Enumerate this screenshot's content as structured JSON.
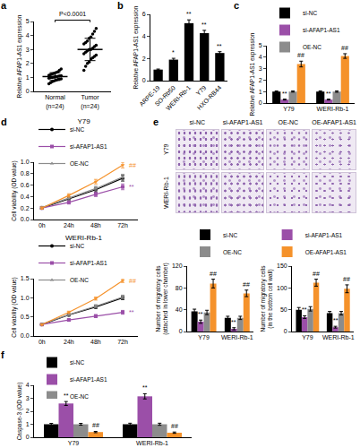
{
  "chart_data": [
    {
      "panel": "a",
      "type": "scatter",
      "y_label": "Relative AFAP1-AS1 expression",
      "categories": [
        "Normal\n(n=24)",
        "Tumor\n(n=24)"
      ],
      "groups": [
        {
          "color": "#000000",
          "values": [
            0.55,
            0.62,
            0.7,
            0.75,
            0.8,
            0.85,
            0.88,
            0.9,
            0.95,
            0.98,
            1.0,
            1.02,
            1.05,
            1.08,
            1.1,
            1.12,
            1.15,
            1.2,
            1.25,
            1.3,
            1.35,
            1.4,
            1.5,
            1.6
          ],
          "mean": 1.06,
          "sd": 0.28
        },
        {
          "color": "#000000",
          "values": [
            1.5,
            1.8,
            2.0,
            2.1,
            2.3,
            2.4,
            2.5,
            2.6,
            2.7,
            2.8,
            2.9,
            3.0,
            3.0,
            3.1,
            3.2,
            3.3,
            3.4,
            3.5,
            3.6,
            3.8,
            3.9,
            4.1,
            4.3,
            4.5
          ],
          "mean": 3.0,
          "sd": 0.8
        }
      ],
      "annotations": [
        {
          "text": "P<0.0001"
        }
      ],
      "ylim": [
        0,
        5
      ],
      "yticks": [
        0,
        1,
        2,
        3,
        4,
        5
      ]
    },
    {
      "panel": "b",
      "type": "bar",
      "y_label": "Relative AFAP1-AS1 expression",
      "categories": [
        "ARPE-19",
        "SO-Rb50",
        "WERI-Rb-1",
        "Y79",
        "HXO-RB44"
      ],
      "values": [
        1.0,
        1.9,
        5.2,
        4.3,
        2.5
      ],
      "errors": [
        0.05,
        0.12,
        0.3,
        0.25,
        0.12
      ],
      "significance": [
        null,
        "*",
        "**",
        "**",
        "**"
      ],
      "color": "#000000",
      "ylim": [
        0,
        6
      ],
      "yticks": [
        0,
        2,
        4,
        6
      ]
    },
    {
      "panel": "c",
      "type": "bar",
      "y_label": "Relative AFAP1-AS1 expression",
      "legend": "top",
      "categories": [
        "Y79",
        "WERI-Rb-1"
      ],
      "series": [
        {
          "name": "si-NC",
          "color": "#000000",
          "values": [
            1.0,
            1.0
          ],
          "errors": [
            0.05,
            0.06
          ],
          "significance": [
            null,
            null
          ]
        },
        {
          "name": "si-AFAP1-AS1",
          "color": "#9b4fa8",
          "values": [
            0.3,
            0.3
          ],
          "errors": [
            0.04,
            0.04
          ],
          "significance": [
            "**",
            "**"
          ]
        },
        {
          "name": "OE-NC",
          "color": "#8c8c8c",
          "values": [
            1.0,
            1.0
          ],
          "errors": [
            0.05,
            0.06
          ],
          "significance": [
            null,
            null
          ]
        },
        {
          "name": "OE-AFAP1-AS1",
          "color": "#f5922b",
          "values": [
            3.4,
            4.1
          ],
          "errors": [
            0.25,
            0.2
          ],
          "significance": [
            "##",
            "##"
          ]
        }
      ],
      "ylim": [
        0,
        5
      ],
      "yticks": [
        0,
        1,
        2,
        3,
        4,
        5
      ]
    },
    {
      "panel": "d",
      "type": "line",
      "title": "Y79",
      "y_label": "Cell viability (OD value)",
      "legend": "top",
      "categories": [
        "0h",
        "24h",
        "48h",
        "72h"
      ],
      "series": [
        {
          "name": "si-NC",
          "color": "#000000",
          "marker": "circle",
          "values": [
            0.2,
            0.36,
            0.52,
            0.72
          ],
          "errors": [
            0.02,
            0.03,
            0.04,
            0.05
          ],
          "significance": [
            null,
            null,
            null,
            null
          ]
        },
        {
          "name": "si-AFAP1-AS1",
          "color": "#9b4fa8",
          "marker": "square",
          "values": [
            0.2,
            0.3,
            0.44,
            0.57
          ],
          "errors": [
            0.02,
            0.03,
            0.04,
            0.05
          ],
          "significance": [
            null,
            null,
            null,
            "**"
          ]
        },
        {
          "name": "OE-NC",
          "color": "#8c8c8c",
          "marker": "triangle-up",
          "values": [
            0.21,
            0.37,
            0.54,
            0.74
          ],
          "errors": [
            0.02,
            0.03,
            0.04,
            0.05
          ],
          "significance": [
            null,
            null,
            null,
            null
          ]
        },
        {
          "name": "OE-AFAP1-AS1",
          "color": "#f5922b",
          "marker": "triangle-down",
          "values": [
            0.2,
            0.42,
            0.66,
            0.95
          ],
          "errors": [
            0.02,
            0.03,
            0.04,
            0.05
          ],
          "significance": [
            null,
            null,
            null,
            "##"
          ]
        }
      ],
      "ylim": [
        0,
        1
      ],
      "yticks": [
        {
          "value": 0,
          "label": "0.0"
        },
        0.2,
        0.4,
        0.6,
        0.8,
        {
          "value": 1,
          "label": "1.0"
        }
      ]
    },
    {
      "type": "line",
      "title": "WERI-Rb-1",
      "y_label": "Cell viability (OD value)",
      "legend": "top",
      "categories": [
        "0h",
        "24h",
        "48h",
        "72h"
      ],
      "series": [
        {
          "name": "si-NC",
          "color": "#000000",
          "marker": "circle",
          "values": [
            0.3,
            0.55,
            0.76,
            1.0
          ],
          "errors": [
            0.02,
            0.03,
            0.04,
            0.05
          ],
          "significance": [
            null,
            null,
            null,
            null
          ]
        },
        {
          "name": "si-AFAP1-AS1",
          "color": "#9b4fa8",
          "marker": "square",
          "values": [
            0.3,
            0.42,
            0.52,
            0.62
          ],
          "errors": [
            0.02,
            0.03,
            0.04,
            0.05
          ],
          "significance": [
            null,
            null,
            null,
            "**"
          ]
        },
        {
          "name": "OE-NC",
          "color": "#8c8c8c",
          "marker": "triangle-up",
          "values": [
            0.31,
            0.56,
            0.78,
            1.02
          ],
          "errors": [
            0.02,
            0.03,
            0.04,
            0.05
          ],
          "significance": [
            null,
            null,
            null,
            null
          ]
        },
        {
          "name": "OE-AFAP1-AS1",
          "color": "#f5922b",
          "marker": "triangle-down",
          "values": [
            0.3,
            0.62,
            0.98,
            1.45
          ],
          "errors": [
            0.02,
            0.03,
            0.04,
            0.05
          ],
          "significance": [
            null,
            null,
            null,
            "##"
          ]
        }
      ],
      "ylim": [
        0,
        1.5
      ],
      "yticks": [
        {
          "value": 0,
          "label": "0.0"
        },
        0.5,
        {
          "value": 1,
          "label": "1.0"
        },
        1.5
      ]
    },
    {
      "panel": "e",
      "type": "image_grid",
      "columns": [
        "si-NC",
        "si-AFAP1-AS1",
        "OE-NC",
        "OE-AFAP1-AS1"
      ],
      "rows": [
        "Y79",
        "WERI-Rb-1"
      ]
    },
    {
      "type": "bar",
      "y_label": "Number of migratory cells\n(attached in lower chamber)",
      "legend": "top",
      "categories": [
        "Y79",
        "WERI-Rb-1"
      ],
      "series": [
        {
          "name": "si-NC",
          "color": "#000000",
          "values": [
            37,
            25
          ],
          "errors": [
            4,
            3
          ],
          "significance": [
            null,
            null
          ]
        },
        {
          "name": "si-AFAP1-AS1",
          "color": "#9b4fa8",
          "values": [
            18,
            5
          ],
          "errors": [
            3,
            2
          ],
          "significance": [
            "**",
            "**"
          ]
        },
        {
          "name": "OE-NC",
          "color": "#8c8c8c",
          "values": [
            35,
            25
          ],
          "errors": [
            4,
            3
          ],
          "significance": [
            null,
            null
          ]
        },
        {
          "name": "OE-AFAP1-AS1",
          "color": "#f5922b",
          "values": [
            88,
            70
          ],
          "errors": [
            8,
            6
          ],
          "significance": [
            "##",
            "##"
          ]
        }
      ],
      "ylim": [
        0,
        120
      ],
      "yticks": [
        0,
        40,
        80,
        120
      ]
    },
    {
      "type": "bar",
      "y_label": "Number of migratory cells\n(in the bottom cell wall)",
      "categories": [
        "Y79",
        "WERI-Rb-1"
      ],
      "series": [
        {
          "name": "si-NC",
          "color": "#000000",
          "values": [
            50,
            42
          ],
          "errors": [
            5,
            4
          ],
          "significance": [
            null,
            null
          ]
        },
        {
          "name": "si-AFAP1-AS1",
          "color": "#9b4fa8",
          "values": [
            33,
            10
          ],
          "errors": [
            3,
            2
          ],
          "significance": [
            "**",
            "**"
          ]
        },
        {
          "name": "OE-NC",
          "color": "#8c8c8c",
          "values": [
            52,
            42
          ],
          "errors": [
            5,
            4
          ],
          "significance": [
            null,
            null
          ]
        },
        {
          "name": "OE-AFAP1-AS1",
          "color": "#f5922b",
          "values": [
            112,
            98
          ],
          "errors": [
            8,
            9
          ],
          "significance": [
            "##",
            "##"
          ]
        }
      ],
      "ylim": [
        0,
        150
      ],
      "yticks": [
        0,
        50,
        100,
        150
      ]
    },
    {
      "panel": "f",
      "type": "bar",
      "y_label": "Caspase-3 (OD value)",
      "legend": "top",
      "categories": [
        "Y79",
        "WERI-Rb-1"
      ],
      "series": [
        {
          "name": "si-NC",
          "color": "#000000",
          "values": [
            1.0,
            1.0
          ],
          "errors": [
            0.07,
            0.08
          ],
          "significance": [
            null,
            null
          ]
        },
        {
          "name": "si-AFAP1-AS1",
          "color": "#9b4fa8",
          "values": [
            2.6,
            3.15
          ],
          "errors": [
            0.15,
            0.2
          ],
          "significance": [
            "**",
            "**"
          ]
        },
        {
          "name": "OE-NC",
          "color": "#8c8c8c",
          "values": [
            1.0,
            1.0
          ],
          "errors": [
            0.07,
            0.08
          ],
          "significance": [
            null,
            null
          ]
        },
        {
          "name": "OE-AFAP1-AS1",
          "color": "#f5922b",
          "values": [
            0.4,
            0.35
          ],
          "errors": [
            0.05,
            0.05
          ],
          "significance": [
            "##",
            "##"
          ]
        }
      ],
      "ylim": [
        0,
        4
      ],
      "yticks": [
        0,
        1,
        2,
        3,
        4
      ]
    }
  ]
}
